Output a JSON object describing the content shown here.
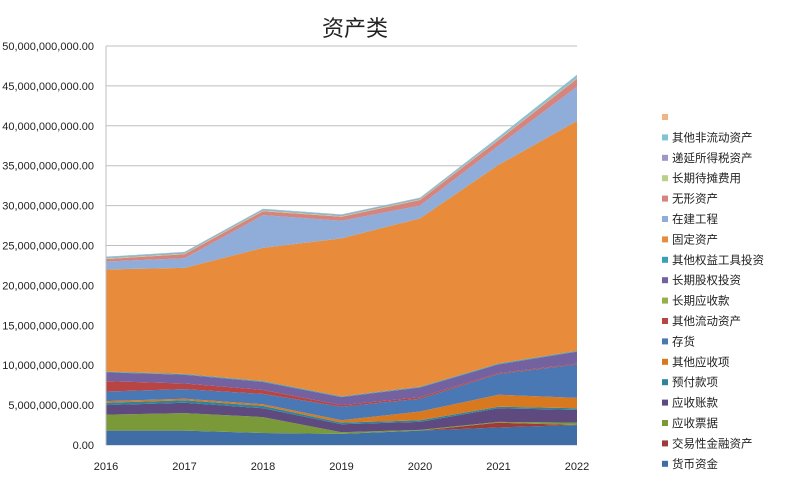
{
  "chart_data": {
    "type": "area",
    "stacked": true,
    "title": "资产类",
    "xlabel": "",
    "ylabel": "",
    "x": [
      "2016",
      "2017",
      "2018",
      "2019",
      "2020",
      "2021",
      "2022"
    ],
    "ylim": [
      0,
      50000000000
    ],
    "yticks": [
      0,
      5000000000,
      10000000000,
      15000000000,
      20000000000,
      25000000000,
      30000000000,
      35000000000,
      40000000000,
      45000000000,
      50000000000
    ],
    "ytick_labels": [
      "0.00",
      "5,000,000,000.00",
      "10,000,000,000.00",
      "15,000,000,000.00",
      "20,000,000,000.00",
      "25,000,000,000.00",
      "30,000,000,000.00",
      "35,000,000,000.00",
      "40,000,000,000.00",
      "45,000,000,000.00",
      "50,000,000,000.00"
    ],
    "grid": true,
    "legend_position": "right",
    "series": [
      {
        "name": "货币资金",
        "color": "#3f6ea6",
        "values": [
          1800000000,
          1800000000,
          1500000000,
          1400000000,
          1800000000,
          2200000000,
          2500000000
        ]
      },
      {
        "name": "交易性金融资产",
        "color": "#9e3a38",
        "values": [
          0,
          0,
          0,
          0,
          0,
          600000000,
          0
        ]
      },
      {
        "name": "应收票据",
        "color": "#7a9a3a",
        "values": [
          2000000000,
          2200000000,
          2000000000,
          200000000,
          100000000,
          100000000,
          300000000
        ]
      },
      {
        "name": "应收账款",
        "color": "#5e4a7e",
        "values": [
          1200000000,
          1300000000,
          1100000000,
          1000000000,
          1000000000,
          1700000000,
          1600000000
        ]
      },
      {
        "name": "预付款项",
        "color": "#2e8599",
        "values": [
          300000000,
          300000000,
          300000000,
          200000000,
          200000000,
          200000000,
          200000000
        ]
      },
      {
        "name": "其他应收项",
        "color": "#d9791f",
        "values": [
          200000000,
          200000000,
          200000000,
          300000000,
          1100000000,
          1500000000,
          1300000000
        ]
      },
      {
        "name": "存货",
        "color": "#4a78b5",
        "values": [
          1200000000,
          1200000000,
          1300000000,
          1700000000,
          1600000000,
          2600000000,
          4200000000
        ]
      },
      {
        "name": "其他流动资产",
        "color": "#b84444",
        "values": [
          1300000000,
          700000000,
          500000000,
          200000000,
          200000000,
          100000000,
          100000000
        ]
      },
      {
        "name": "长期应收款",
        "color": "#93b04a",
        "values": [
          0,
          0,
          0,
          0,
          0,
          0,
          0
        ]
      },
      {
        "name": "长期股权投资",
        "color": "#7461a0",
        "values": [
          1100000000,
          1100000000,
          1000000000,
          1000000000,
          1200000000,
          1100000000,
          1500000000
        ]
      },
      {
        "name": "其他权益工具投资",
        "color": "#3aa0b8",
        "values": [
          100000000,
          100000000,
          100000000,
          100000000,
          100000000,
          100000000,
          100000000
        ]
      },
      {
        "name": "固定资产",
        "color": "#e88b3a",
        "values": [
          12800000000,
          13300000000,
          16700000000,
          19800000000,
          21100000000,
          24900000000,
          28800000000
        ]
      },
      {
        "name": "在建工程",
        "color": "#8fadd8",
        "values": [
          1000000000,
          1200000000,
          4100000000,
          2200000000,
          1600000000,
          2400000000,
          4300000000
        ]
      },
      {
        "name": "无形资产",
        "color": "#d6847f",
        "values": [
          300000000,
          500000000,
          500000000,
          500000000,
          700000000,
          700000000,
          1000000000
        ]
      },
      {
        "name": "长期待摊费用",
        "color": "#b9d08a",
        "values": [
          100000000,
          100000000,
          100000000,
          100000000,
          100000000,
          100000000,
          100000000
        ]
      },
      {
        "name": "递延所得税资产",
        "color": "#a296c4",
        "values": [
          100000000,
          100000000,
          100000000,
          100000000,
          100000000,
          100000000,
          100000000
        ]
      },
      {
        "name": "其他非流动资产",
        "color": "#82c3d3",
        "values": [
          100000000,
          100000000,
          100000000,
          100000000,
          100000000,
          200000000,
          300000000
        ]
      },
      {
        "name": "",
        "color": "#f2b482",
        "values": [
          0,
          0,
          0,
          0,
          0,
          0,
          0
        ]
      }
    ]
  }
}
